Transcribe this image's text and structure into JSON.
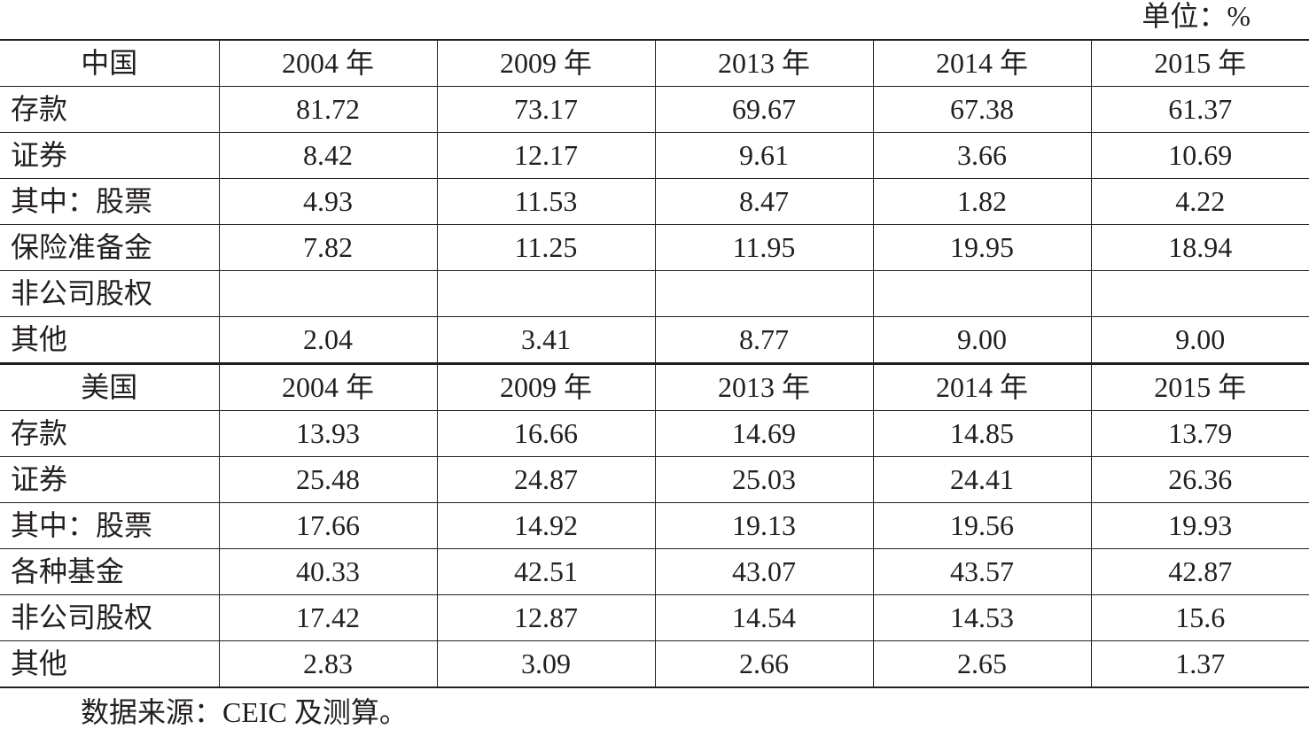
{
  "unit_label": "单位：%",
  "year_suffix": " 年",
  "years": [
    "2004",
    "2009",
    "2013",
    "2014",
    "2015"
  ],
  "china": {
    "label": "中国",
    "rows": [
      {
        "label": "存款",
        "values": [
          "81.72",
          "73.17",
          "69.67",
          "67.38",
          "61.37"
        ]
      },
      {
        "label": "证券",
        "values": [
          "8.42",
          "12.17",
          "9.61",
          "3.66",
          "10.69"
        ]
      },
      {
        "label": "其中：股票",
        "values": [
          "4.93",
          "11.53",
          "8.47",
          "1.82",
          "4.22"
        ]
      },
      {
        "label": "保险准备金",
        "values": [
          "7.82",
          "11.25",
          "11.95",
          "19.95",
          "18.94"
        ]
      },
      {
        "label": "非公司股权",
        "values": [
          "",
          "",
          "",
          "",
          ""
        ]
      },
      {
        "label": "其他",
        "values": [
          "2.04",
          "3.41",
          "8.77",
          "9.00",
          "9.00"
        ]
      }
    ]
  },
  "usa": {
    "label": "美国",
    "rows": [
      {
        "label": "存款",
        "values": [
          "13.93",
          "16.66",
          "14.69",
          "14.85",
          "13.79"
        ]
      },
      {
        "label": "证券",
        "values": [
          "25.48",
          "24.87",
          "25.03",
          "24.41",
          "26.36"
        ]
      },
      {
        "label": "其中：股票",
        "values": [
          "17.66",
          "14.92",
          "19.13",
          "19.56",
          "19.93"
        ]
      },
      {
        "label": "各种基金",
        "values": [
          "40.33",
          "42.51",
          "43.07",
          "43.57",
          "42.87"
        ]
      },
      {
        "label": "非公司股权",
        "values": [
          "17.42",
          "12.87",
          "14.54",
          "14.53",
          "15.6"
        ]
      },
      {
        "label": "其他",
        "values": [
          "2.83",
          "3.09",
          "2.66",
          "2.65",
          "1.37"
        ]
      }
    ]
  },
  "source": "数据来源：CEIC 及测算。"
}
